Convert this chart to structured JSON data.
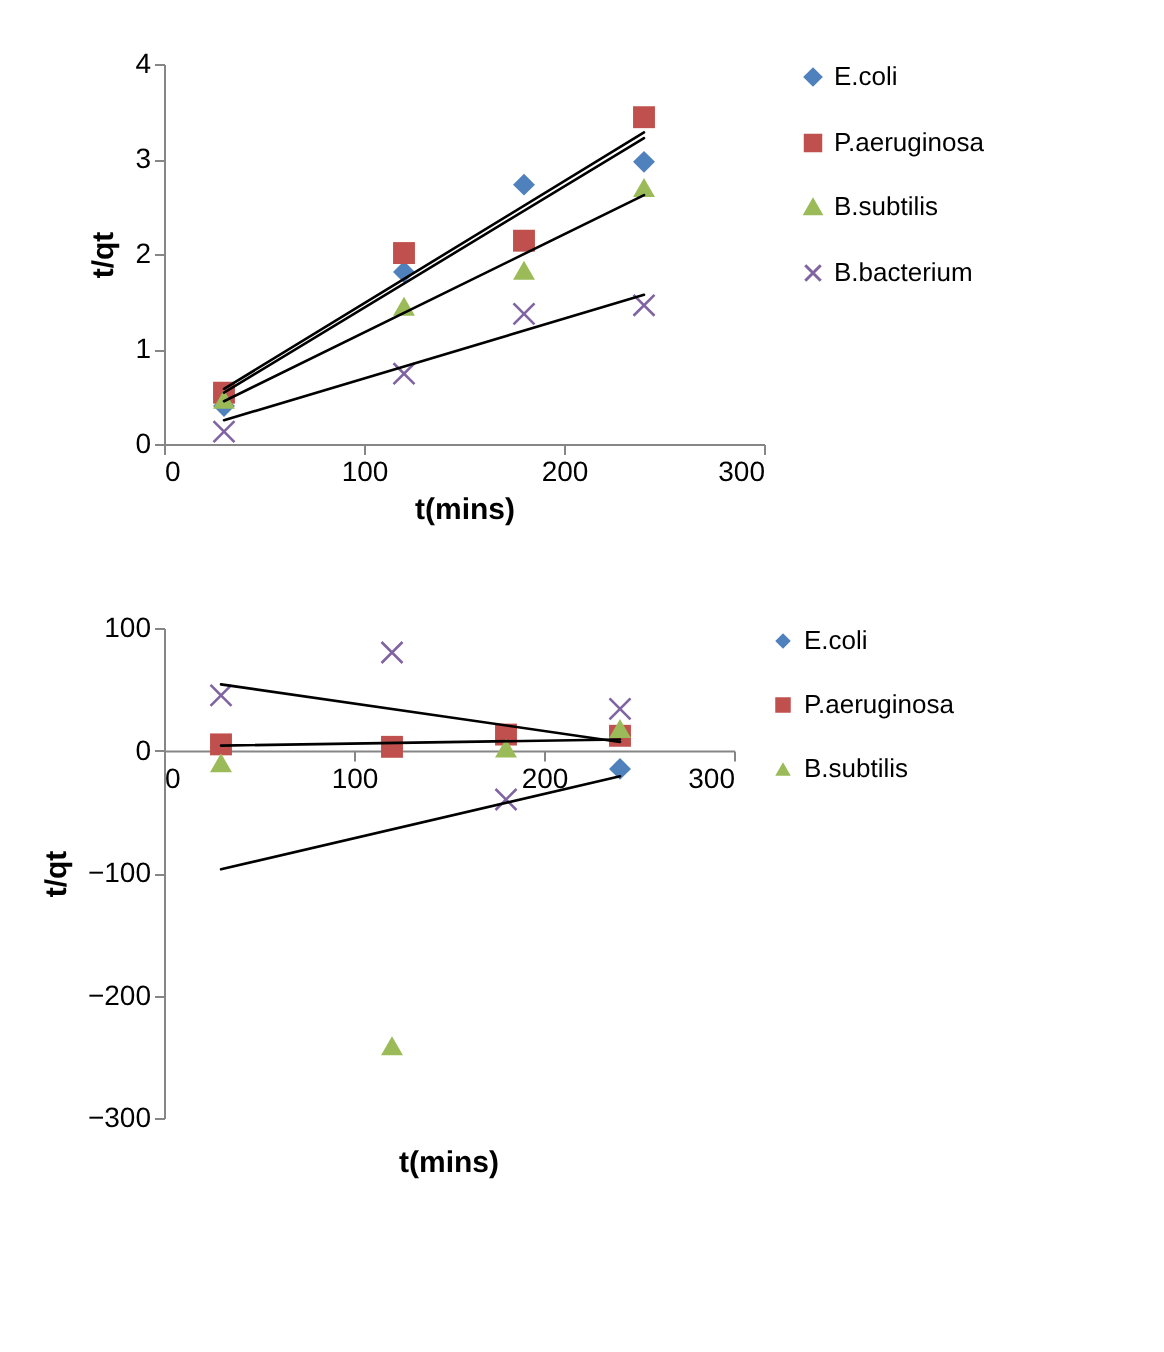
{
  "chart_data": [
    {
      "type": "scatter",
      "xlabel": "t(mins)",
      "ylabel": "t/qt",
      "x": [
        30,
        120,
        180,
        240
      ],
      "xlim": [
        0,
        300
      ],
      "xticks": [
        0,
        100,
        200,
        300
      ],
      "ylim": [
        0,
        4
      ],
      "yticks": [
        0,
        1,
        2,
        3,
        4
      ],
      "grid": false,
      "legend": "right",
      "series": [
        {
          "name": "E.coli",
          "color": "#4f81bd",
          "marker": "diamond",
          "values": [
            0.4,
            1.81,
            2.73,
            2.97
          ]
        },
        {
          "name": "P.aeruginosa",
          "color": "#c0504d",
          "marker": "square",
          "values": [
            0.54,
            2.01,
            2.14,
            3.44
          ]
        },
        {
          "name": "B.subtilis",
          "color": "#9bbb59",
          "marker": "triangle",
          "values": [
            0.47,
            1.45,
            1.83,
            2.7
          ]
        },
        {
          "name": "B.bacterium",
          "color": "#8064a2",
          "marker": "cross",
          "values": [
            0.13,
            0.74,
            1.37,
            1.46
          ]
        },
        {
          "type": "line",
          "color": "#000000",
          "values": [
            0.54,
            null,
            null,
            3.22
          ]
        },
        {
          "type": "line",
          "color": "#000000",
          "values": [
            0.58,
            null,
            null,
            3.28
          ]
        },
        {
          "type": "line",
          "color": "#000000",
          "values": [
            0.45,
            null,
            null,
            2.62
          ]
        },
        {
          "type": "line",
          "color": "#000000",
          "values": [
            0.25,
            null,
            null,
            1.57
          ]
        }
      ]
    },
    {
      "type": "scatter",
      "xlabel": "t(mins)",
      "ylabel": "t/qt",
      "x": [
        30,
        120,
        180,
        240
      ],
      "xlim": [
        0,
        300
      ],
      "xticks": [
        0,
        100,
        200,
        300
      ],
      "ylim": [
        -300,
        100
      ],
      "yticks": [
        -300,
        -200,
        -100,
        0,
        100
      ],
      "grid": false,
      "legend": "right",
      "series": [
        {
          "name": "E.coli",
          "color": "#4f81bd",
          "marker": "diamond",
          "values": [
            null,
            null,
            null,
            -15
          ]
        },
        {
          "name": "P.aeruginosa",
          "color": "#c0504d",
          "marker": "square",
          "values": [
            5,
            3,
            13,
            12
          ]
        },
        {
          "name": "B.subtilis",
          "color": "#9bbb59",
          "marker": "triangle",
          "values": [
            -10,
            -241,
            2,
            18
          ]
        },
        {
          "color": "#8064a2",
          "marker": "cross",
          "values": [
            45,
            80,
            -40,
            34
          ]
        },
        {
          "type": "line",
          "color": "#000000",
          "values": [
            4,
            null,
            null,
            9
          ]
        },
        {
          "type": "line",
          "color": "#000000",
          "values": [
            54,
            null,
            null,
            7
          ]
        },
        {
          "type": "line",
          "color": "#000000",
          "values": [
            -97,
            null,
            null,
            -21
          ]
        }
      ]
    }
  ]
}
